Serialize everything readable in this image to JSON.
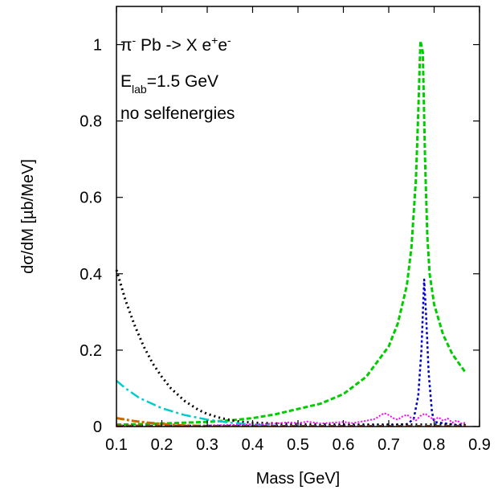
{
  "chart_data": {
    "type": "line",
    "xlabel": "Mass [GeV]",
    "ylabel": "dσ/dM [µb/MeV]",
    "xlim": [
      0.1,
      0.9
    ],
    "ylim": [
      0,
      1.1
    ],
    "x_ticks": [
      "0.1",
      "0.2",
      "0.3",
      "0.4",
      "0.5",
      "0.6",
      "0.7",
      "0.8",
      "0.9"
    ],
    "y_ticks": [
      "0",
      "0.2",
      "0.4",
      "0.6",
      "0.8",
      "1"
    ],
    "grid": false,
    "annotations": [
      {
        "parts": [
          {
            "t": "π"
          },
          {
            "t": "-",
            "sup": true
          },
          {
            "t": " Pb -> X e"
          },
          {
            "t": "+",
            "sup": true
          },
          {
            "t": "e"
          },
          {
            "t": "-",
            "sup": true
          }
        ]
      },
      {
        "parts": [
          {
            "t": "E"
          },
          {
            "t": "lab",
            "sub": true
          },
          {
            "t": "=1.5 GeV"
          }
        ]
      },
      {
        "parts": [
          {
            "t": "no selfenergies"
          }
        ]
      }
    ],
    "series": [
      {
        "color": "#00cc00",
        "dash": "6,3",
        "width": 3,
        "x": [
          0.1,
          0.15,
          0.2,
          0.25,
          0.3,
          0.35,
          0.4,
          0.45,
          0.5,
          0.55,
          0.6,
          0.65,
          0.7,
          0.72,
          0.74,
          0.75,
          0.76,
          0.765,
          0.77,
          0.775,
          0.78,
          0.785,
          0.79,
          0.8,
          0.82,
          0.84,
          0.87
        ],
        "y": [
          0.005,
          0.006,
          0.008,
          0.01,
          0.012,
          0.016,
          0.022,
          0.032,
          0.046,
          0.06,
          0.085,
          0.13,
          0.21,
          0.27,
          0.37,
          0.47,
          0.65,
          0.82,
          1.01,
          0.98,
          0.7,
          0.5,
          0.4,
          0.32,
          0.24,
          0.19,
          0.14
        ]
      },
      {
        "color": "#0000cc",
        "dash": "3,3",
        "width": 2.5,
        "x": [
          0.1,
          0.3,
          0.5,
          0.7,
          0.74,
          0.755,
          0.765,
          0.772,
          0.778,
          0.782,
          0.788,
          0.795,
          0.8,
          0.85,
          0.87
        ],
        "y": [
          0.002,
          0.002,
          0.002,
          0.003,
          0.006,
          0.02,
          0.08,
          0.2,
          0.385,
          0.3,
          0.14,
          0.04,
          0.012,
          0.004,
          0.003
        ]
      },
      {
        "color": "#000000",
        "dash": "2,4",
        "width": 3,
        "x": [
          0.1,
          0.12,
          0.14,
          0.16,
          0.18,
          0.2,
          0.22,
          0.25,
          0.28,
          0.3,
          0.33,
          0.36,
          0.38,
          0.4,
          0.5,
          0.6,
          0.7,
          0.8,
          0.87
        ],
        "y": [
          0.41,
          0.33,
          0.265,
          0.21,
          0.165,
          0.13,
          0.1,
          0.067,
          0.044,
          0.033,
          0.022,
          0.015,
          0.012,
          0.01,
          0.006,
          0.005,
          0.005,
          0.005,
          0.004
        ]
      },
      {
        "color": "#00cccc",
        "dash": "12,4,3,4",
        "width": 2.5,
        "x": [
          0.1,
          0.12,
          0.15,
          0.2,
          0.25,
          0.3,
          0.35,
          0.4,
          0.45
        ],
        "y": [
          0.12,
          0.1,
          0.075,
          0.048,
          0.03,
          0.018,
          0.01,
          0.005,
          0.002
        ]
      },
      {
        "color": "#cc6600",
        "dash": "10,3,3,3",
        "width": 3,
        "x": [
          0.1,
          0.12,
          0.14,
          0.17,
          0.2,
          0.23,
          0.25,
          0.3
        ],
        "y": [
          0.022,
          0.018,
          0.014,
          0.01,
          0.007,
          0.004,
          0.003,
          0.001
        ]
      },
      {
        "color": "#ff00ff",
        "dash": "2,2",
        "width": 2,
        "x": [
          0.3,
          0.4,
          0.45,
          0.48,
          0.5,
          0.52,
          0.55,
          0.6,
          0.62,
          0.65,
          0.67,
          0.68,
          0.69,
          0.7,
          0.71,
          0.72,
          0.73,
          0.74,
          0.75,
          0.76,
          0.77,
          0.78,
          0.79,
          0.8,
          0.81,
          0.82,
          0.83,
          0.84,
          0.85,
          0.86,
          0.87
        ],
        "y": [
          0.003,
          0.005,
          0.008,
          0.011,
          0.009,
          0.013,
          0.008,
          0.012,
          0.009,
          0.015,
          0.02,
          0.028,
          0.035,
          0.03,
          0.022,
          0.018,
          0.026,
          0.031,
          0.022,
          0.016,
          0.028,
          0.034,
          0.025,
          0.018,
          0.024,
          0.015,
          0.021,
          0.01,
          0.016,
          0.008,
          0.01
        ]
      },
      {
        "color": "#cc3300",
        "dash": "8,4",
        "width": 2,
        "x": [
          0.1,
          0.3,
          0.5,
          0.7,
          0.87
        ],
        "y": [
          0.003,
          0.002,
          0.002,
          0.002,
          0.002
        ]
      }
    ]
  }
}
